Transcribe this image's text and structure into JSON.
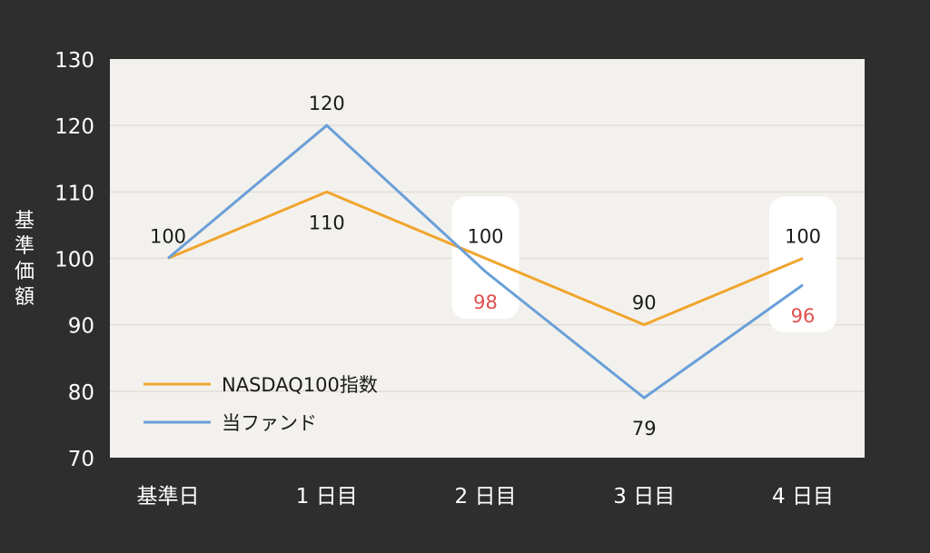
{
  "chart_data": {
    "type": "line",
    "ylabel": "基準価額",
    "categories": [
      "基準日",
      "1日目",
      "2日目",
      "3日目",
      "4日目"
    ],
    "category_labels": [
      "基準日",
      "1 日目",
      "2 日目",
      "3 日目",
      "4 日目"
    ],
    "ylim": [
      70,
      130
    ],
    "yticks": [
      70,
      80,
      90,
      100,
      110,
      120,
      130
    ],
    "grid": true,
    "legend_position": "bottom-left",
    "series": [
      {
        "name": "NASDAQ100指数",
        "color": "#f0a52d",
        "values": [
          100,
          110,
          100,
          90,
          100
        ]
      },
      {
        "name": "当ファンド",
        "color": "#6a9fd8",
        "values": [
          100,
          120,
          98,
          79,
          96
        ]
      }
    ],
    "data_labels": [
      {
        "series": 0,
        "index": 0,
        "text": "100",
        "color": "#1a1a1a",
        "side": "above"
      },
      {
        "series": 1,
        "index": 1,
        "text": "120",
        "color": "#1a1a1a",
        "side": "above"
      },
      {
        "series": 0,
        "index": 1,
        "text": "110",
        "color": "#1a1a1a",
        "side": "below"
      },
      {
        "series": 0,
        "index": 2,
        "text": "100",
        "color": "#1a1a1a",
        "side": "above",
        "boxed": true
      },
      {
        "series": 1,
        "index": 2,
        "text": "98",
        "color": "#e0504f",
        "side": "below",
        "boxed": true
      },
      {
        "series": 0,
        "index": 3,
        "text": "90",
        "color": "#1a1a1a",
        "side": "above"
      },
      {
        "series": 1,
        "index": 3,
        "text": "79",
        "color": "#1a1a1a",
        "side": "below"
      },
      {
        "series": 0,
        "index": 4,
        "text": "100",
        "color": "#1a1a1a",
        "side": "above",
        "boxed": true
      },
      {
        "series": 1,
        "index": 4,
        "text": "96",
        "color": "#e0504f",
        "side": "below",
        "boxed": true
      }
    ],
    "colors": {
      "background": "#2e2e2e",
      "plot_background": "#f3f1ed",
      "grid": "#e2ddd6",
      "axis_text": "#ffffff",
      "highlight_box": "#ffffff"
    }
  }
}
